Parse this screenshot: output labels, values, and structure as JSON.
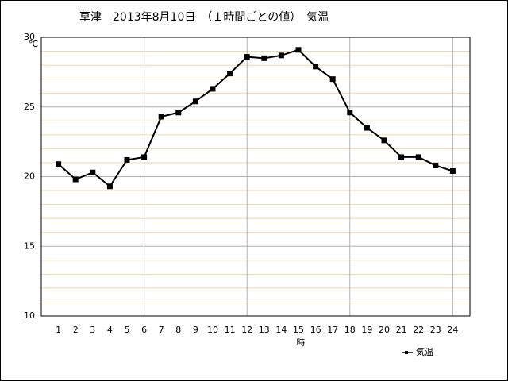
{
  "chart_data": {
    "type": "line",
    "title": "草津　2013年8月10日　（１時間ごとの値）　気温",
    "y_label": "℃",
    "x_label": "時",
    "x": [
      1,
      2,
      3,
      4,
      5,
      6,
      7,
      8,
      9,
      10,
      11,
      12,
      13,
      14,
      15,
      16,
      17,
      18,
      19,
      20,
      21,
      22,
      23,
      24
    ],
    "series": [
      {
        "name": "気温",
        "color": "#000000",
        "values": [
          20.9,
          19.8,
          20.3,
          19.3,
          21.2,
          21.4,
          24.3,
          24.6,
          25.4,
          26.3,
          27.4,
          28.6,
          28.5,
          28.7,
          29.1,
          27.9,
          27.0,
          24.6,
          23.5,
          22.6,
          21.4,
          21.4,
          20.8,
          20.4
        ]
      }
    ],
    "xlim": [
      0,
      25
    ],
    "xticks": [
      1,
      2,
      3,
      4,
      5,
      6,
      7,
      8,
      9,
      10,
      11,
      12,
      13,
      14,
      15,
      16,
      17,
      18,
      19,
      20,
      21,
      22,
      23,
      24
    ],
    "xgrid": [
      6,
      12,
      18,
      24
    ],
    "ylim": [
      10,
      30
    ],
    "yticks": [
      10,
      15,
      20,
      25,
      30
    ],
    "grid": true,
    "legend": "bottom-right"
  }
}
